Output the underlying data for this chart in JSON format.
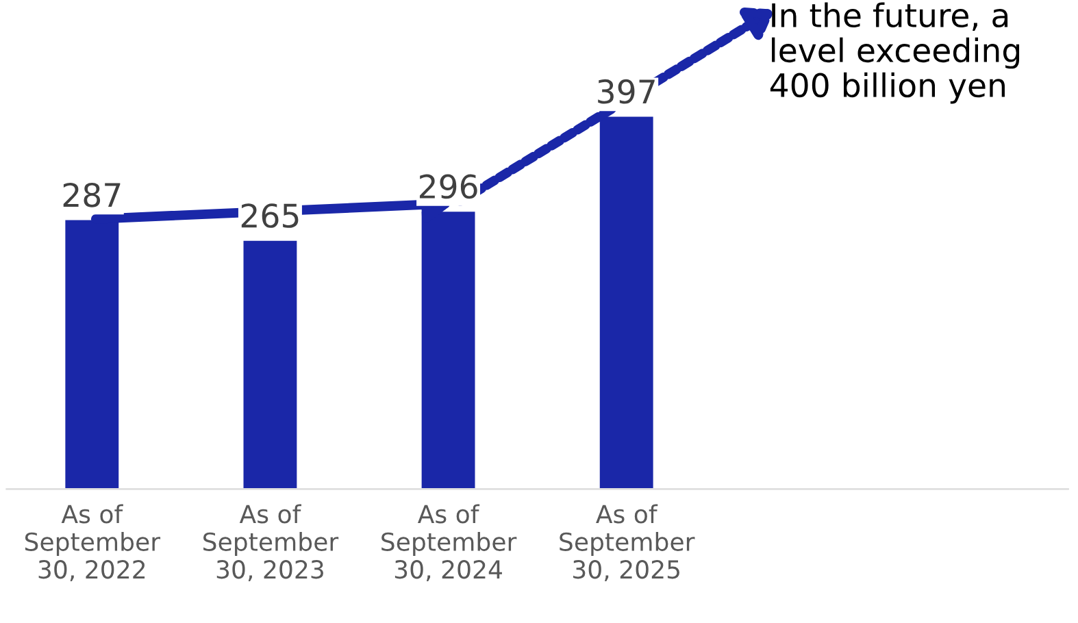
{
  "chart_data": {
    "type": "bar",
    "categories": [
      "As of\nSeptember\n30, 2022",
      "As of\nSeptember\n30, 2023",
      "As of\nSeptember\n30, 2024",
      "As of\nSeptember\n30, 2025"
    ],
    "values": [
      287,
      265,
      296,
      397
    ],
    "color": "#1a27a8",
    "data_labels": true,
    "annotations": [
      "In the future, a\nlevel exceeding\n400 billion yen"
    ]
  }
}
